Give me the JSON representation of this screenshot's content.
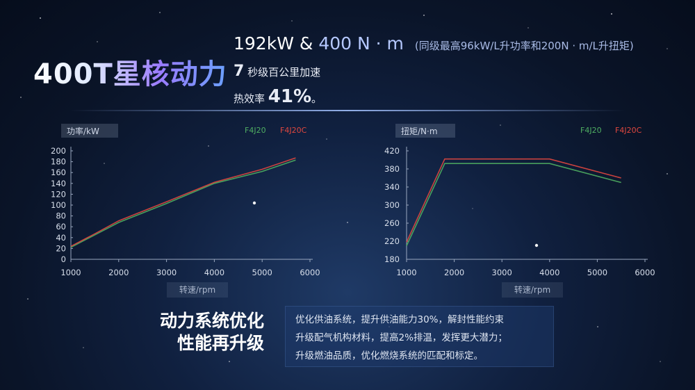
{
  "header": {
    "title": "400T星核动力",
    "spec_line1": {
      "power": "192kW",
      "amp": "&",
      "torque": "400 N · m",
      "note": "(同级最高96kW/L升功率和200N · m/L升扭矩)"
    },
    "spec_line2": {
      "value": "7",
      "text": "秒级百公里加速"
    },
    "spec_line3": {
      "text": "热效率",
      "value": "41%",
      "suffix": "。"
    }
  },
  "chart_data": [
    {
      "type": "line",
      "ylabel": "功率/kW",
      "xlabel": "转速/rpm",
      "x_ticks": [
        "1000",
        "2000",
        "3000",
        "4000",
        "5000",
        "6000"
      ],
      "y_ticks": [
        "0",
        "20",
        "40",
        "60",
        "80",
        "100",
        "120",
        "140",
        "160",
        "180",
        "200"
      ],
      "xlim": [
        1000,
        6000
      ],
      "ylim": [
        0,
        200
      ],
      "series": [
        {
          "name": "F4J20",
          "color": "#4fae62",
          "x": [
            1000,
            1500,
            2000,
            3000,
            4000,
            5000,
            5700
          ],
          "y": [
            22,
            45,
            68,
            103,
            140,
            162,
            183
          ]
        },
        {
          "name": "F4J20C",
          "color": "#e0473f",
          "x": [
            1000,
            1500,
            2000,
            3000,
            4000,
            5000,
            5700
          ],
          "y": [
            24,
            47,
            71,
            106,
            142,
            166,
            187
          ]
        }
      ]
    },
    {
      "type": "line",
      "ylabel": "扭矩/N·m",
      "xlabel": "转速/rpm",
      "x_ticks": [
        "1000",
        "2000",
        "3000",
        "4000",
        "5000",
        "6000"
      ],
      "y_ticks": [
        "180",
        "220",
        "260",
        "300",
        "340",
        "380",
        "420"
      ],
      "xlim": [
        1000,
        6000
      ],
      "ylim": [
        180,
        420
      ],
      "series": [
        {
          "name": "F4J20",
          "color": "#4fae62",
          "x": [
            1000,
            1800,
            4000,
            5500
          ],
          "y": [
            210,
            392,
            392,
            350
          ]
        },
        {
          "name": "F4J20C",
          "color": "#e0473f",
          "x": [
            1000,
            1800,
            4000,
            5500
          ],
          "y": [
            218,
            402,
            402,
            360
          ]
        }
      ]
    }
  ],
  "optimization": {
    "title_line1": "动力系统优化",
    "title_line2": "性能再升级",
    "lines": [
      "优化供油系统，提升供油能力30%，解封性能约束",
      "升级配气机构材料，提高2%排温，发挥更大潜力；",
      "升级燃油品质，优化燃烧系统的匹配和标定。"
    ]
  }
}
